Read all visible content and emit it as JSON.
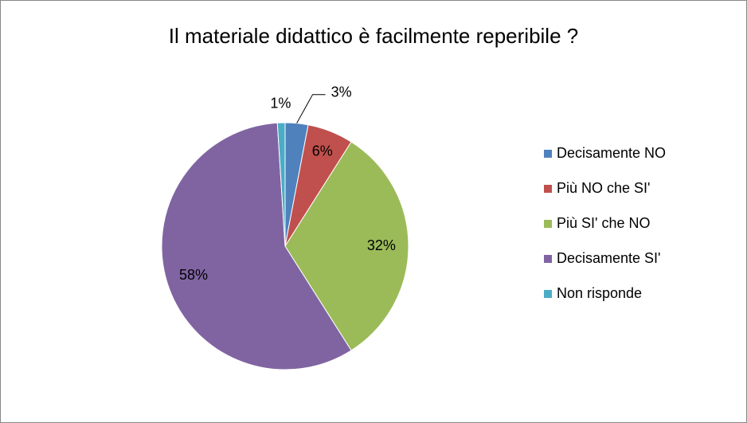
{
  "chart_data": {
    "type": "pie",
    "title": "Il materiale didattico è facilmente reperibile ?",
    "categories": [
      "Decisamente NO",
      "Più NO che SI'",
      "Più SI' che NO",
      "Decisamente SI'",
      "Non risponde"
    ],
    "values": [
      3,
      6,
      32,
      58,
      1
    ],
    "value_labels": [
      "3%",
      "6%",
      "32%",
      "58%",
      "1%"
    ],
    "colors": [
      "#4f81bd",
      "#c0504d",
      "#9bbb59",
      "#8064a2",
      "#4bacc6"
    ],
    "legend": "right"
  }
}
